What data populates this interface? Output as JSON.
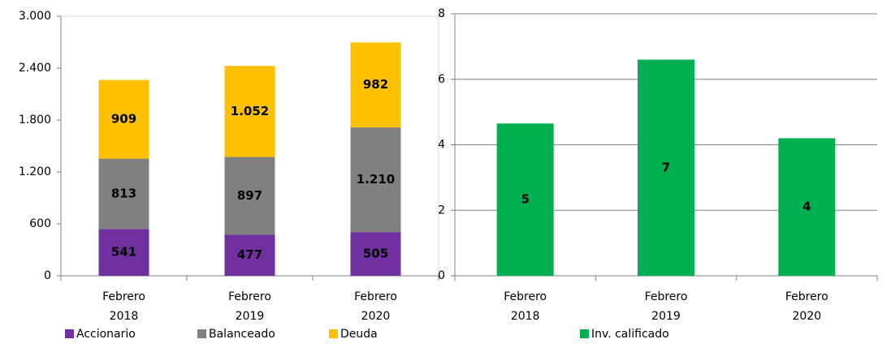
{
  "chart_data": [
    {
      "type": "stacked_bar",
      "categories": [
        "Febrero 2018",
        "Febrero 2019",
        "Febrero 2020"
      ],
      "series": [
        {
          "name": "Accionario",
          "color": "#7030a0",
          "values": [
            541,
            477,
            505
          ]
        },
        {
          "name": "Balanceado",
          "color": "#808080",
          "values": [
            813,
            897,
            1210
          ],
          "value_labels": [
            "813",
            "897",
            "1.210"
          ]
        },
        {
          "name": "Deuda",
          "color": "#ffc000",
          "values": [
            909,
            1052,
            982
          ],
          "value_labels": [
            "909",
            "1.052",
            "982"
          ]
        }
      ],
      "ylim": [
        0,
        3000
      ],
      "yticks": [
        0,
        600,
        {
          "value": 1200,
          "label": "1.200"
        },
        {
          "value": 1800,
          "label": "1.800"
        },
        {
          "value": 2400,
          "label": "2.400"
        },
        {
          "value": 3000,
          "label": "3.000"
        }
      ],
      "grid": false,
      "legend": "bottom"
    },
    {
      "type": "bar",
      "categories": [
        "Febrero 2018",
        "Febrero 2019",
        "Febrero 2020"
      ],
      "series": [
        {
          "name": "Inv. calificado",
          "color": "#00b050",
          "values": [
            4.65,
            6.6,
            4.2
          ],
          "value_labels": [
            "5",
            "7",
            "4"
          ]
        }
      ],
      "ylim": [
        0,
        8
      ],
      "yticks": [
        0,
        2,
        4,
        6,
        8
      ],
      "grid": true,
      "legend": "bottom"
    }
  ]
}
